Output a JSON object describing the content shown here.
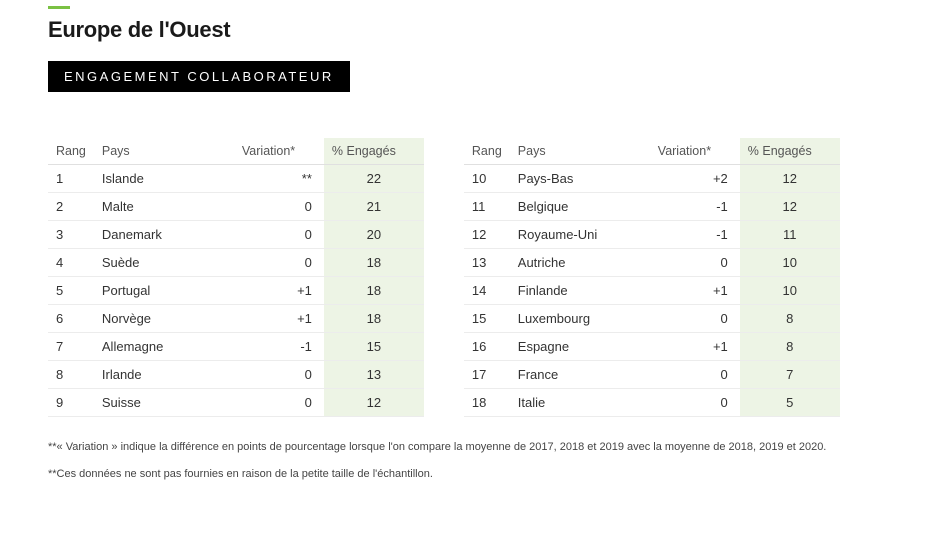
{
  "colors": {
    "accent_green": "#7ac143",
    "badge_bg": "#000000",
    "badge_text": "#ffffff",
    "page_bg": "#ffffff",
    "text_primary": "#222222",
    "engaged_col_bg": "#edf4e5",
    "row_border": "#ececec",
    "header_border": "#e0e0e0"
  },
  "header": {
    "title": "Europe de l'Ouest",
    "section_label": "ENGAGEMENT COLLABORATEUR"
  },
  "table": {
    "columns": {
      "rank": "Rang",
      "country": "Pays",
      "variation": "Variation*",
      "engaged": "% Engagés"
    },
    "rows_left": [
      {
        "rank": "1",
        "country": "Islande",
        "variation": "**",
        "engaged": "22"
      },
      {
        "rank": "2",
        "country": "Malte",
        "variation": "0",
        "engaged": "21"
      },
      {
        "rank": "3",
        "country": "Danemark",
        "variation": "0",
        "engaged": "20"
      },
      {
        "rank": "4",
        "country": "Suède",
        "variation": "0",
        "engaged": "18"
      },
      {
        "rank": "5",
        "country": "Portugal",
        "variation": "+1",
        "engaged": "18"
      },
      {
        "rank": "6",
        "country": "Norvège",
        "variation": "+1",
        "engaged": "18"
      },
      {
        "rank": "7",
        "country": "Allemagne",
        "variation": "-1",
        "engaged": "15"
      },
      {
        "rank": "8",
        "country": "Irlande",
        "variation": "0",
        "engaged": "13"
      },
      {
        "rank": "9",
        "country": "Suisse",
        "variation": "0",
        "engaged": "12"
      }
    ],
    "rows_right": [
      {
        "rank": "10",
        "country": "Pays-Bas",
        "variation": "+2",
        "engaged": "12"
      },
      {
        "rank": "11",
        "country": "Belgique",
        "variation": "-1",
        "engaged": "12"
      },
      {
        "rank": "12",
        "country": "Royaume-Uni",
        "variation": "-1",
        "engaged": "11"
      },
      {
        "rank": "13",
        "country": "Autriche",
        "variation": "0",
        "engaged": "10"
      },
      {
        "rank": "14",
        "country": "Finlande",
        "variation": "+1",
        "engaged": "10"
      },
      {
        "rank": "15",
        "country": "Luxembourg",
        "variation": "0",
        "engaged": "8"
      },
      {
        "rank": "16",
        "country": "Espagne",
        "variation": "+1",
        "engaged": "8"
      },
      {
        "rank": "17",
        "country": "France",
        "variation": "0",
        "engaged": "7"
      },
      {
        "rank": "18",
        "country": "Italie",
        "variation": "0",
        "engaged": "5"
      }
    ]
  },
  "footnotes": {
    "note1": "**« Variation » indique la différence en points de pourcentage lorsque l'on compare la moyenne de 2017, 2018 et 2019 avec la moyenne de 2018, 2019 et 2020.",
    "note2": "**Ces données ne sont pas fournies en raison de la petite taille de l'échantillon."
  }
}
